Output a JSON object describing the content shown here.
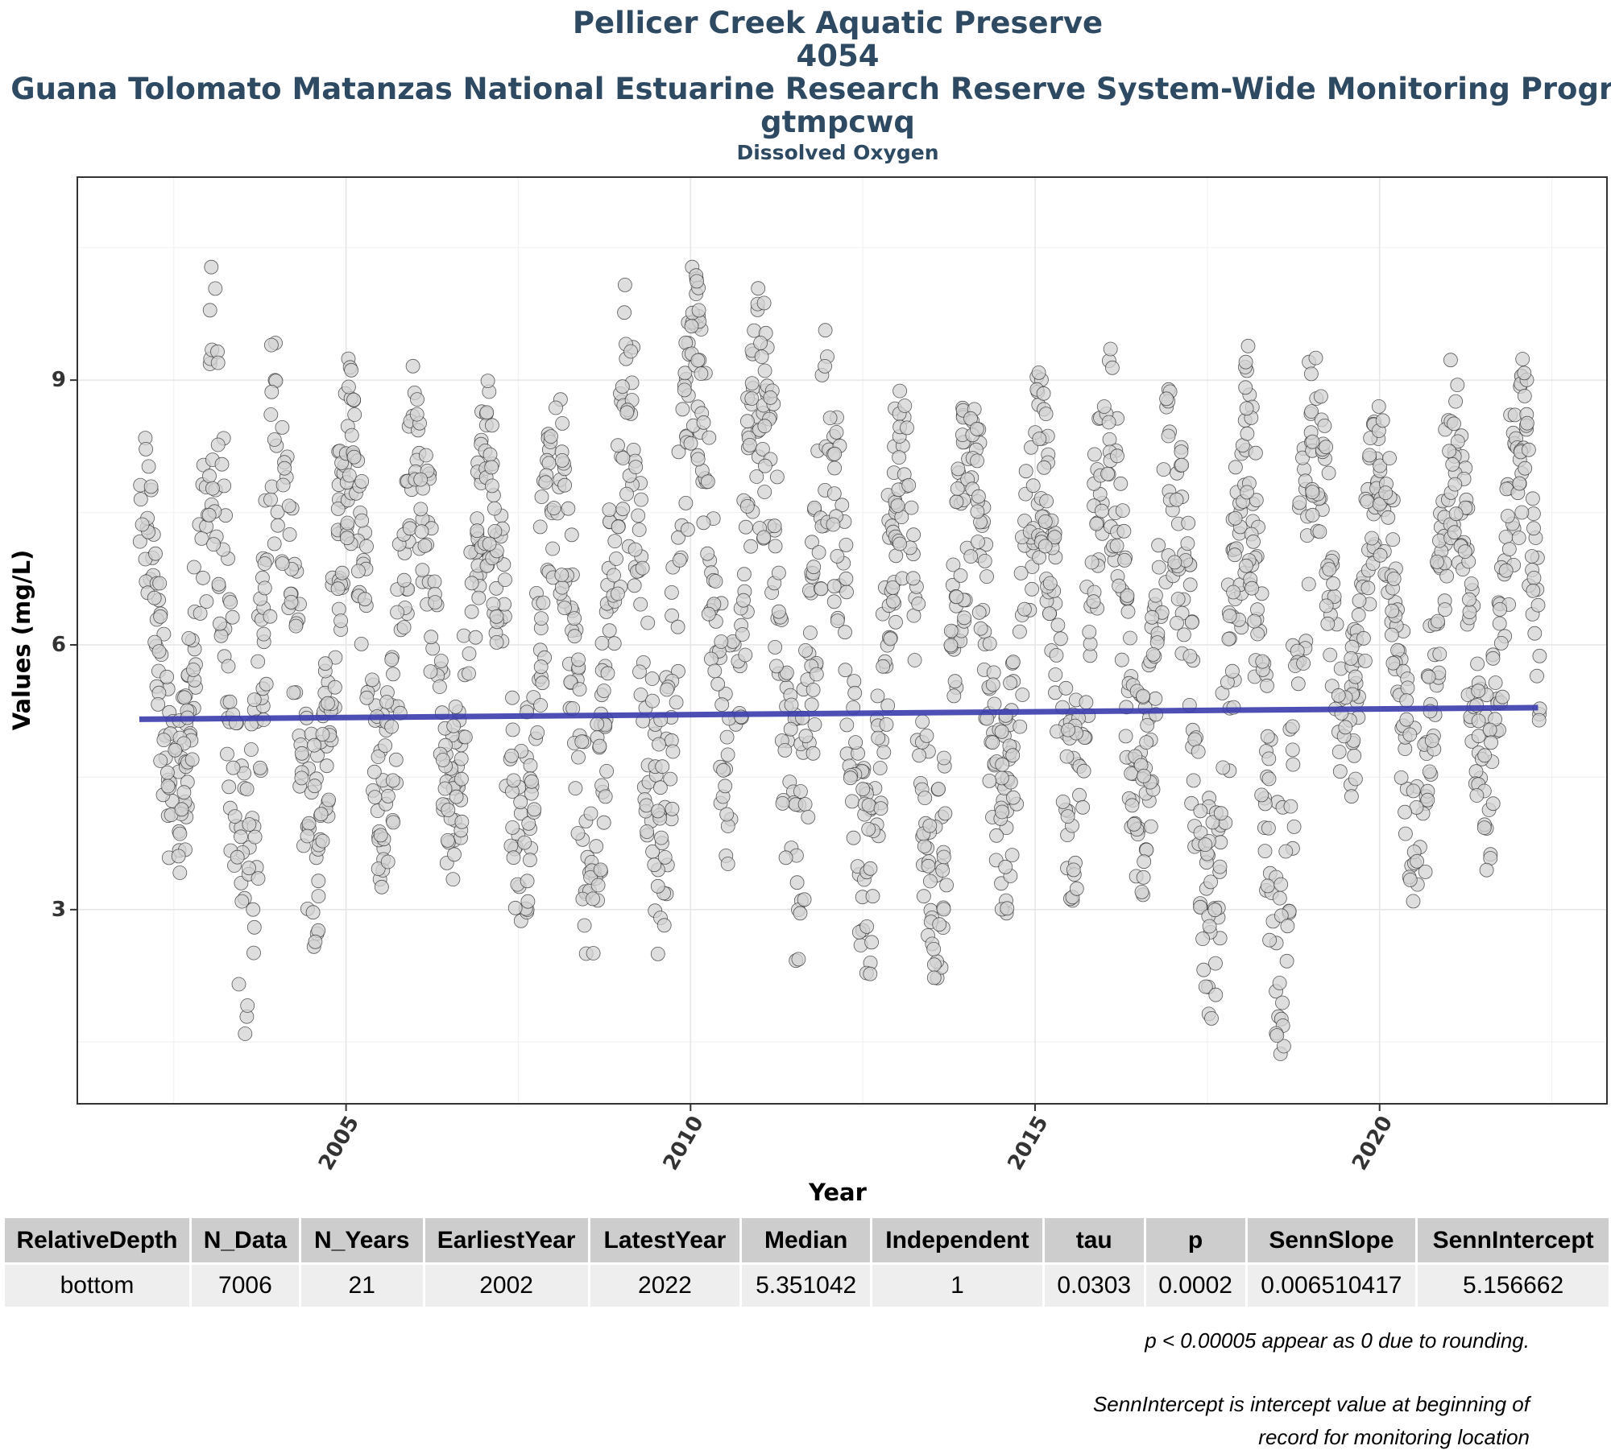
{
  "titles": {
    "line1": "Pellicer Creek Aquatic Preserve",
    "line2": "4054",
    "line3": "Guana Tolomato Matanzas National Estuarine Research Reserve System-Wide Monitoring Program",
    "line4": "gtmpcwq",
    "subtitle": "Dissolved Oxygen"
  },
  "chart_data": {
    "type": "scatter",
    "title": "Pellicer Creek Aquatic Preserve 4054 Guana Tolomato Matanzas National Estuarine Research Reserve System-Wide Monitoring Program gtmpcwq",
    "subtitle": "Dissolved Oxygen",
    "xlabel": "Year",
    "ylabel": "Values (mg/L)",
    "xlim": [
      2001.1,
      2023.3
    ],
    "ylim": [
      0.8,
      11.3
    ],
    "x_ticks": [
      2005,
      2010,
      2015,
      2020
    ],
    "y_ticks": [
      3,
      6,
      9
    ],
    "grid": true,
    "point_color": "#d3d3d3",
    "point_edge_color": "#333333",
    "trend_line_color": "#3a3cad",
    "series": [
      {
        "kind": "scatter",
        "n_points": 7006,
        "seasonal_summary": [
          {
            "year": 2002,
            "peak": 8.6,
            "trough": 3.1
          },
          {
            "year": 2003,
            "peak": 10.4,
            "trough": 1.4
          },
          {
            "year": 2004,
            "peak": 9.1,
            "trough": 2.5
          },
          {
            "year": 2005,
            "peak": 9.5,
            "trough": 3.1
          },
          {
            "year": 2006,
            "peak": 9.0,
            "trough": 3.1
          },
          {
            "year": 2007,
            "peak": 9.2,
            "trough": 2.6
          },
          {
            "year": 2008,
            "peak": 9.4,
            "trough": 2.3
          },
          {
            "year": 2009,
            "peak": 10.2,
            "trough": 2.4
          },
          {
            "year": 2010,
            "peak": 10.7,
            "trough": 3.4
          },
          {
            "year": 2011,
            "peak": 10.1,
            "trough": 2.3
          },
          {
            "year": 2012,
            "peak": 9.0,
            "trough": 2.0
          },
          {
            "year": 2013,
            "peak": 9.2,
            "trough": 1.8
          },
          {
            "year": 2014,
            "peak": 9.3,
            "trough": 2.8
          },
          {
            "year": 2015,
            "peak": 9.3,
            "trough": 3.0
          },
          {
            "year": 2016,
            "peak": 9.6,
            "trough": 3.0
          },
          {
            "year": 2017,
            "peak": 8.8,
            "trough": 1.6
          },
          {
            "year": 2018,
            "peak": 9.7,
            "trough": 1.1
          },
          {
            "year": 2019,
            "peak": 9.4,
            "trough": 4.0
          },
          {
            "year": 2020,
            "peak": 8.8,
            "trough": 2.8
          },
          {
            "year": 2021,
            "peak": 9.5,
            "trough": 3.3
          },
          {
            "year": 2022,
            "peak": 9.4,
            "trough": 3.5
          }
        ]
      },
      {
        "kind": "trend_line",
        "x": [
          2002.0,
          2022.3
        ],
        "y": [
          5.157,
          5.289
        ]
      }
    ]
  },
  "table": {
    "headers": [
      "RelativeDepth",
      "N_Data",
      "N_Years",
      "EarliestYear",
      "LatestYear",
      "Median",
      "Independent",
      "tau",
      "p",
      "SennSlope",
      "SennIntercept"
    ],
    "rows": [
      [
        "bottom",
        "7006",
        "21",
        "2002",
        "2022",
        "5.351042",
        "1",
        "0.0303",
        "0.0002",
        "0.006510417",
        "5.156662"
      ]
    ]
  },
  "notes": {
    "note1": "p < 0.00005 appear as 0 due to rounding.",
    "note2_line1": "SennIntercept is intercept value at beginning of",
    "note2_line2": "record for monitoring location"
  }
}
